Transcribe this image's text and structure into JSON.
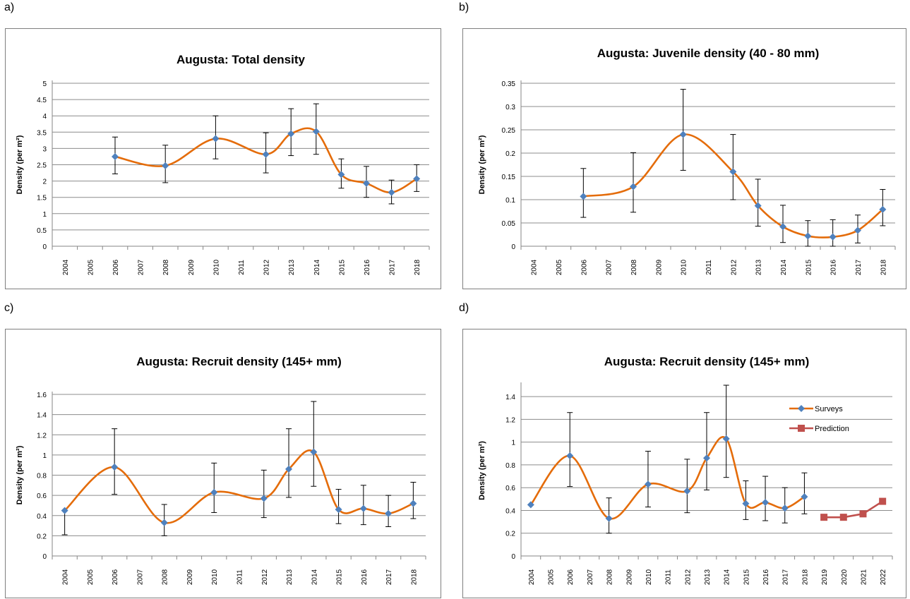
{
  "panel_labels": [
    "a)",
    "b)",
    "c)",
    "d)"
  ],
  "chart_data": [
    {
      "type": "line",
      "title": "Augusta: Total density",
      "ylabel": "Density (per m²)",
      "xlabel": "",
      "categories": [
        "2004",
        "2005",
        "2006",
        "2007",
        "2008",
        "2009",
        "2010",
        "2011",
        "2012",
        "2013",
        "2014",
        "2015",
        "2016",
        "2017",
        "2018"
      ],
      "ylim": [
        0,
        5
      ],
      "yticks": [
        "0",
        "0.5",
        "1",
        "1.5",
        "2",
        "2.5",
        "3",
        "3.5",
        "4",
        "4.5",
        "5"
      ],
      "grid": true,
      "legend": false,
      "series": [
        {
          "x": [
            "2006",
            "2008",
            "2010",
            "2012",
            "2013",
            "2014",
            "2015",
            "2016",
            "2017",
            "2018"
          ],
          "values": [
            2.75,
            2.47,
            3.3,
            2.82,
            3.45,
            3.52,
            2.2,
            1.93,
            1.65,
            2.07
          ],
          "err_low": [
            2.22,
            1.95,
            2.68,
            2.25,
            2.78,
            2.82,
            1.78,
            1.5,
            1.3,
            1.68
          ],
          "err_high": [
            3.35,
            3.1,
            4.0,
            3.48,
            4.22,
            4.37,
            2.68,
            2.45,
            2.03,
            2.5
          ],
          "color": "#e46c0a",
          "marker_color": "#4f81bd",
          "marker": "diamond"
        }
      ]
    },
    {
      "type": "line",
      "title": "Augusta: Juvenile density (40 - 80 mm)",
      "ylabel": "Density (per m²)",
      "xlabel": "",
      "categories": [
        "2004",
        "2005",
        "2006",
        "2007",
        "2008",
        "2009",
        "2010",
        "2011",
        "2012",
        "2013",
        "2014",
        "2015",
        "2016",
        "2017",
        "2018"
      ],
      "ylim": [
        0,
        0.35
      ],
      "yticks": [
        "0",
        "0.05",
        "0.1",
        "0.15",
        "0.2",
        "0.25",
        "0.3",
        "0.35"
      ],
      "grid": true,
      "legend": false,
      "series": [
        {
          "x": [
            "2006",
            "2008",
            "2010",
            "2012",
            "2013",
            "2014",
            "2015",
            "2016",
            "2017",
            "2018"
          ],
          "values": [
            0.107,
            0.128,
            0.24,
            0.16,
            0.087,
            0.042,
            0.022,
            0.02,
            0.034,
            0.079
          ],
          "err_low": [
            0.062,
            0.073,
            0.163,
            0.1,
            0.043,
            0.008,
            0.0,
            0.0,
            0.007,
            0.044
          ],
          "err_high": [
            0.167,
            0.201,
            0.337,
            0.24,
            0.144,
            0.088,
            0.055,
            0.057,
            0.067,
            0.122
          ],
          "color": "#e46c0a",
          "marker_color": "#4f81bd",
          "marker": "diamond"
        }
      ]
    },
    {
      "type": "line",
      "title": "Augusta: Recruit density (145+ mm)",
      "ylabel": "Density (per m²)",
      "xlabel": "",
      "categories": [
        "2004",
        "2005",
        "2006",
        "2007",
        "2008",
        "2009",
        "2010",
        "2011",
        "2012",
        "2013",
        "2014",
        "2015",
        "2016",
        "2017",
        "2018"
      ],
      "ylim": [
        0,
        1.6
      ],
      "yticks": [
        "0",
        "0.2",
        "0.4",
        "0.6",
        "0.8",
        "1",
        "1.2",
        "1.4",
        "1.6"
      ],
      "grid": true,
      "legend": false,
      "series": [
        {
          "x": [
            "2004",
            "2006",
            "2008",
            "2010",
            "2012",
            "2013",
            "2014",
            "2015",
            "2016",
            "2017",
            "2018"
          ],
          "values": [
            0.45,
            0.88,
            0.33,
            0.63,
            0.57,
            0.86,
            1.03,
            0.46,
            0.47,
            0.42,
            0.52
          ],
          "err_low": [
            0.21,
            0.61,
            0.2,
            0.43,
            0.38,
            0.58,
            0.69,
            0.32,
            0.31,
            0.29,
            0.37
          ],
          "err_high": [
            0.45,
            1.26,
            0.51,
            0.92,
            0.85,
            1.26,
            1.53,
            0.66,
            0.7,
            0.6,
            0.73
          ],
          "color": "#e46c0a",
          "marker_color": "#4f81bd",
          "marker": "diamond"
        }
      ]
    },
    {
      "type": "line",
      "title": "Augusta: Recruit density (145+ mm)",
      "ylabel": "Density (per m²)",
      "xlabel": "",
      "categories": [
        "2004",
        "2005",
        "2006",
        "2007",
        "2008",
        "2009",
        "2010",
        "2011",
        "2012",
        "2013",
        "2014",
        "2015",
        "2016",
        "2017",
        "2018",
        "2019",
        "2020",
        "2021",
        "2022"
      ],
      "ylim": [
        0,
        1.5
      ],
      "yticks": [
        "0",
        "0.2",
        "0.4",
        "0.6",
        "0.8",
        "1",
        "1.2",
        "1.4"
      ],
      "grid": true,
      "legend": "top-right",
      "series": [
        {
          "name": "Surveys",
          "x": [
            "2004",
            "2006",
            "2008",
            "2010",
            "2012",
            "2013",
            "2014",
            "2015",
            "2016",
            "2017",
            "2018"
          ],
          "values": [
            0.45,
            0.88,
            0.33,
            0.63,
            0.57,
            0.86,
            1.03,
            0.46,
            0.47,
            0.42,
            0.52
          ],
          "err_low": [
            0.45,
            0.61,
            0.2,
            0.43,
            0.38,
            0.58,
            0.69,
            0.32,
            0.31,
            0.29,
            0.37
          ],
          "err_high": [
            0.45,
            1.26,
            0.51,
            0.92,
            0.85,
            1.26,
            1.5,
            0.66,
            0.7,
            0.6,
            0.73
          ],
          "color": "#e46c0a",
          "marker_color": "#4f81bd",
          "marker": "diamond"
        },
        {
          "name": "Prediction",
          "x": [
            "2019",
            "2020",
            "2021",
            "2022"
          ],
          "values": [
            0.34,
            0.34,
            0.37,
            0.48
          ],
          "color": "#c0504d",
          "marker_color": "#c0504d",
          "marker": "square"
        }
      ]
    }
  ]
}
